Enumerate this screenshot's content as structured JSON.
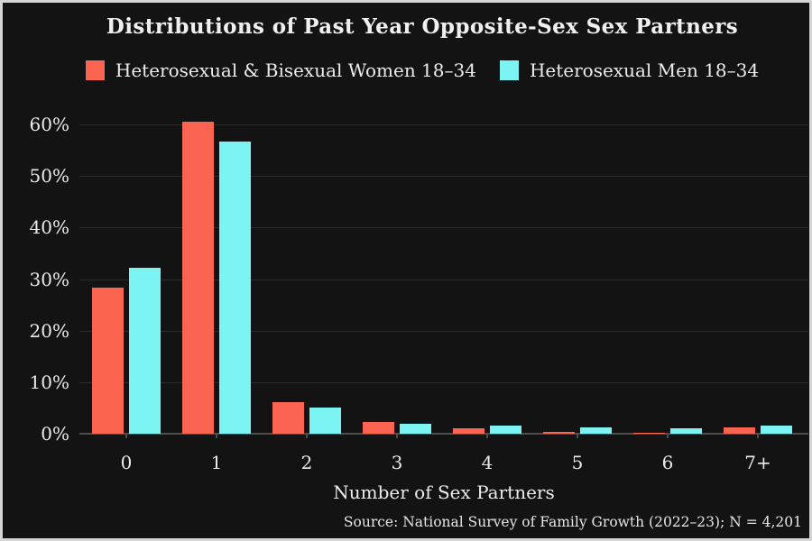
{
  "title": "Distributions of Past Year Opposite-Sex Sex Partners",
  "x_axis_title": "Number of Sex Partners",
  "source_note": "Source: National Survey of Family Growth (2022–23); N = 4,201",
  "colors": {
    "background": "#131313",
    "border": "#d5d5d5",
    "women_bar": "#fa6450",
    "men_bar": "#7df4f4",
    "gridline": "#2c2c2c",
    "axis_line": "#4e4e4e",
    "text": "#ededed"
  },
  "legend": {
    "items": [
      {
        "label": "Heterosexual & Bisexual Women 18–34",
        "color": "#fa6450",
        "key": "women"
      },
      {
        "label": "Heterosexual Men 18–34",
        "color": "#7df4f4",
        "key": "men"
      }
    ]
  },
  "chart_data": {
    "type": "bar",
    "title": "Distributions of Past Year Opposite-Sex Sex Partners",
    "categories": [
      "0",
      "1",
      "2",
      "3",
      "4",
      "5",
      "6",
      "7+"
    ],
    "series": [
      {
        "name": "Heterosexual & Bisexual Women 18–34",
        "color": "#fa6450",
        "values": [
          28.4,
          60.6,
          6.2,
          2.3,
          1.0,
          0.4,
          0.2,
          1.2
        ]
      },
      {
        "name": "Heterosexual Men 18–34",
        "color": "#7df4f4",
        "values": [
          32.1,
          56.6,
          5.0,
          1.9,
          1.6,
          1.2,
          1.0,
          1.5
        ]
      }
    ],
    "xlabel": "Number of Sex Partners",
    "ylabel": "",
    "ylim": [
      0,
      60
    ],
    "ytick_step": 10,
    "ytick_labels": [
      "0%",
      "10%",
      "20%",
      "30%",
      "40%",
      "50%",
      "60%"
    ],
    "grid": true,
    "legend_position": "top"
  }
}
